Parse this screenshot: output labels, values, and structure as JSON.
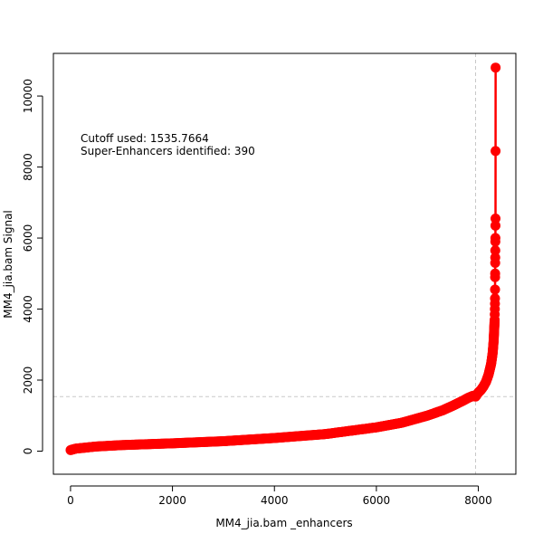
{
  "chart_data": {
    "type": "scatter",
    "title": "",
    "xlabel": "MM4_jia.bam _enhancers",
    "ylabel": "MM4_jia.bam  Signal",
    "xlim": [
      -336,
      8736
    ],
    "ylim": [
      -650,
      11200
    ],
    "xticks": [
      0,
      2000,
      4000,
      6000,
      8000
    ],
    "yticks": [
      0,
      2000,
      4000,
      6000,
      8000,
      10000
    ],
    "grid": false,
    "cutoff_y": 1535.7664,
    "cutoff_x": 7946,
    "annotations": [
      "Cutoff used:  1535.7664",
      "Super-Enhancers identified:  390"
    ],
    "series": [
      {
        "color": "#ff0000",
        "curve_points": [
          [
            1,
            30
          ],
          [
            100,
            70
          ],
          [
            500,
            130
          ],
          [
            1000,
            170
          ],
          [
            2000,
            220
          ],
          [
            3000,
            280
          ],
          [
            4000,
            370
          ],
          [
            5000,
            480
          ],
          [
            6000,
            670
          ],
          [
            6500,
            800
          ],
          [
            7000,
            1000
          ],
          [
            7300,
            1150
          ],
          [
            7500,
            1280
          ],
          [
            7700,
            1420
          ],
          [
            7800,
            1500
          ],
          [
            7900,
            1560
          ],
          [
            7946,
            1536
          ],
          [
            8000,
            1650
          ],
          [
            8050,
            1720
          ],
          [
            8100,
            1820
          ],
          [
            8150,
            1950
          ],
          [
            8200,
            2150
          ],
          [
            8250,
            2450
          ],
          [
            8280,
            2750
          ],
          [
            8300,
            3100
          ],
          [
            8310,
            3400
          ],
          [
            8320,
            3700
          ]
        ],
        "outliers": [
          [
            8322,
            3850
          ],
          [
            8324,
            4000
          ],
          [
            8326,
            4150
          ],
          [
            8327,
            4300
          ],
          [
            8328,
            4550
          ],
          [
            8329,
            4900
          ],
          [
            8330,
            5000
          ],
          [
            8331,
            5300
          ],
          [
            8332,
            5450
          ],
          [
            8333,
            5650
          ],
          [
            8334,
            5900
          ],
          [
            8335,
            6000
          ],
          [
            8336,
            6350
          ],
          [
            8337,
            6550
          ],
          [
            8338,
            8450
          ],
          [
            8339,
            10800
          ]
        ]
      }
    ]
  }
}
